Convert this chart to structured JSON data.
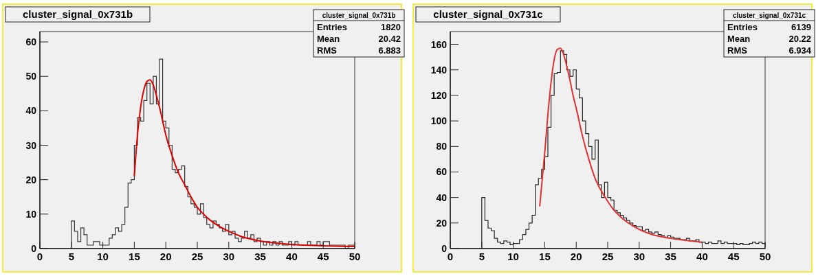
{
  "chart_data": [
    {
      "type": "histogram",
      "title": "cluster_signal_0x731b",
      "annotations": [
        "cluster_signal_0x731b",
        "Entries",
        "1820",
        "Mean",
        "20.42",
        "RMS",
        "6.883"
      ],
      "xlim": [
        0,
        50
      ],
      "ylim": [
        0,
        63
      ],
      "xticks": [
        0,
        5,
        10,
        15,
        20,
        25,
        30,
        35,
        40,
        45,
        50
      ],
      "yticks": [
        0,
        10,
        20,
        30,
        40,
        50,
        60
      ],
      "grid": false,
      "bins": [
        5,
        5.5,
        6,
        6.5,
        7,
        7.5,
        8,
        8.5,
        9,
        9.5,
        10,
        10.5,
        11,
        11.5,
        12,
        12.5,
        13,
        13.5,
        14,
        14.5,
        15,
        15.5,
        16,
        16.5,
        17,
        17.5,
        18,
        18.5,
        19,
        19.5,
        20,
        20.5,
        21,
        21.5,
        22,
        22.5,
        23,
        23.5,
        24,
        24.5,
        25,
        25.5,
        26,
        26.5,
        27,
        27.5,
        28,
        28.5,
        29,
        29.5,
        30,
        30.5,
        31,
        31.5,
        32,
        32.5,
        33,
        33.5,
        34,
        34.5,
        35,
        35.5,
        36,
        36.5,
        37,
        37.5,
        38,
        38.5,
        39,
        39.5,
        40,
        40.5,
        41,
        41.5,
        42,
        42.5,
        43,
        43.5,
        44,
        44.5,
        45,
        45.5,
        46,
        46.5,
        47,
        47.5,
        48,
        48.5,
        49,
        49.5,
        50
      ],
      "series": [
        {
          "color": "#333333",
          "values": [
            8,
            5,
            2,
            6,
            4,
            1,
            1,
            2,
            2,
            1,
            1,
            1,
            3,
            4,
            6,
            5,
            7,
            12,
            19,
            20,
            30,
            38,
            37,
            43,
            48,
            42,
            50,
            42,
            55,
            37,
            35,
            30,
            23,
            22,
            23,
            24,
            18,
            15,
            13,
            12,
            10,
            13,
            9,
            7,
            6,
            8,
            7,
            6,
            5,
            7,
            4,
            5,
            3,
            2,
            3,
            5,
            3,
            4,
            2,
            3,
            2,
            1,
            2,
            1,
            2,
            1,
            2,
            1,
            1,
            2,
            1,
            2,
            1,
            1,
            1,
            2,
            1,
            1,
            2,
            1,
            2,
            2,
            1,
            1,
            1,
            1,
            1,
            0,
            1,
            1
          ]
        },
        {
          "type": "line",
          "color": "#e00000",
          "x": [
            15,
            15.5,
            16,
            16.5,
            17,
            17.5,
            18,
            18.5,
            19,
            19.5,
            20,
            21,
            22,
            23,
            24,
            25,
            26,
            27,
            28,
            30,
            32,
            35,
            40,
            45,
            50
          ],
          "values": [
            21,
            33,
            41,
            46,
            48.5,
            49,
            47.5,
            44.5,
            41,
            37,
            33,
            27,
            22,
            18.5,
            15,
            12,
            10,
            8.3,
            7,
            5,
            3.5,
            2.2,
            1.2,
            0.8,
            0.6
          ]
        }
      ]
    },
    {
      "type": "histogram",
      "title": "cluster_signal_0x731c",
      "annotations": [
        "cluster_signal_0x731c",
        "Entries",
        "6139",
        "Mean",
        "20.22",
        "RMS",
        "6.934"
      ],
      "xlim": [
        0,
        50
      ],
      "ylim": [
        0,
        170
      ],
      "xticks": [
        0,
        5,
        10,
        15,
        20,
        25,
        30,
        35,
        40,
        45,
        50
      ],
      "yticks": [
        0,
        20,
        40,
        60,
        80,
        100,
        120,
        140,
        160
      ],
      "grid": false,
      "bins": [
        5,
        5.5,
        6,
        6.5,
        7,
        7.5,
        8,
        8.5,
        9,
        9.5,
        10,
        10.5,
        11,
        11.5,
        12,
        12.5,
        13,
        13.5,
        14,
        14.5,
        15,
        15.5,
        16,
        16.5,
        17,
        17.5,
        18,
        18.5,
        19,
        19.5,
        20,
        20.5,
        21,
        21.5,
        22,
        22.5,
        23,
        23.5,
        24,
        24.5,
        25,
        25.5,
        26,
        26.5,
        27,
        27.5,
        28,
        28.5,
        29,
        29.5,
        30,
        30.5,
        31,
        31.5,
        32,
        32.5,
        33,
        33.5,
        34,
        34.5,
        35,
        35.5,
        36,
        36.5,
        37,
        37.5,
        38,
        38.5,
        39,
        39.5,
        40,
        40.5,
        41,
        41.5,
        42,
        42.5,
        43,
        43.5,
        44,
        44.5,
        45,
        45.5,
        46,
        46.5,
        47,
        47.5,
        48,
        48.5,
        49,
        49.5,
        50
      ],
      "series": [
        {
          "color": "#222222",
          "values": [
            40,
            22,
            16,
            14,
            8,
            5,
            4,
            6,
            5,
            3,
            4,
            4,
            7,
            11,
            15,
            20,
            26,
            50,
            55,
            62,
            72,
            95,
            120,
            137,
            138,
            155,
            152,
            140,
            135,
            140,
            125,
            118,
            100,
            90,
            80,
            70,
            85,
            50,
            40,
            52,
            40,
            38,
            30,
            28,
            26,
            24,
            22,
            20,
            18,
            17,
            17,
            14,
            15,
            13,
            12,
            13,
            11,
            10,
            9,
            10,
            9,
            8,
            8,
            7,
            7,
            8,
            6,
            6,
            7,
            5,
            5,
            4,
            5,
            4,
            4,
            6,
            4,
            5,
            4,
            4,
            4,
            3,
            4,
            3,
            3,
            4,
            5,
            4,
            5,
            4
          ]
        },
        {
          "type": "line",
          "color": "#e03030",
          "x": [
            14.2,
            15,
            15.5,
            16,
            16.5,
            17,
            17.5,
            18,
            18.5,
            19,
            19.5,
            20,
            21,
            22,
            23,
            24,
            25,
            26,
            27,
            28,
            30,
            32,
            35,
            38,
            40
          ],
          "values": [
            33,
            75,
            105,
            130,
            148,
            156,
            157,
            152,
            143,
            132,
            120,
            110,
            88,
            70,
            55,
            45,
            37,
            30,
            25,
            21,
            15,
            11,
            8,
            6,
            5
          ]
        }
      ]
    }
  ]
}
